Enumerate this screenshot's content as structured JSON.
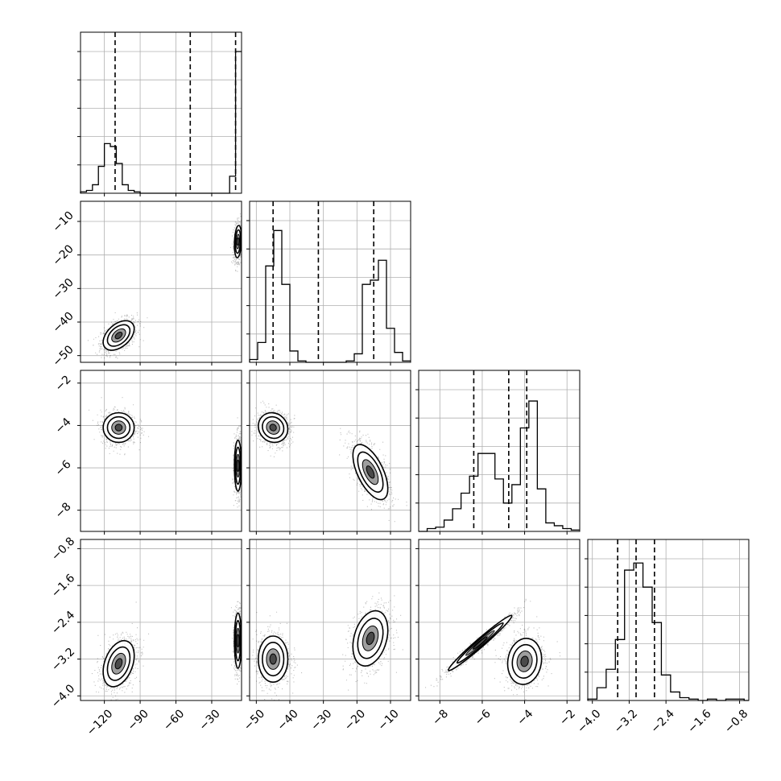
{
  "chart_data": {
    "type": "corner",
    "parameters": [
      {
        "index": 0,
        "range": [
          -140,
          -5
        ],
        "ticks": [
          -120,
          -90,
          -60,
          -30
        ],
        "tick_labels": [
          "−120",
          "−90",
          "−60",
          "−30"
        ]
      },
      {
        "index": 1,
        "range": [
          -52,
          -4
        ],
        "ticks": [
          -50,
          -40,
          -30,
          -20,
          -10
        ],
        "tick_labels": [
          "−50",
          "−40",
          "−30",
          "−20",
          "−10"
        ]
      },
      {
        "index": 2,
        "range": [
          -9,
          -1.4
        ],
        "ticks": [
          -8,
          -6,
          -4,
          -2
        ],
        "tick_labels": [
          "−8",
          "−6",
          "−4",
          "−2"
        ]
      },
      {
        "index": 3,
        "range": [
          -4.1,
          -0.6
        ],
        "ticks": [
          -4.0,
          -3.2,
          -2.4,
          -1.6,
          -0.8
        ],
        "tick_labels": [
          "−4.0",
          "−3.2",
          "−2.4",
          "−1.6",
          "−0.8"
        ]
      }
    ],
    "histograms": [
      {
        "param": 0,
        "edges": [
          -140,
          -135,
          -130,
          -125,
          -120,
          -115,
          -110,
          -105,
          -100,
          -95,
          -90,
          -85,
          -80,
          -75,
          -70,
          -65,
          -60,
          -55,
          -50,
          -45,
          -40,
          -35,
          -30,
          -25,
          -20,
          -15,
          -10,
          -5
        ],
        "counts": [
          0.01,
          0.02,
          0.06,
          0.19,
          0.35,
          0.33,
          0.21,
          0.06,
          0.02,
          0.01,
          0,
          0,
          0,
          0,
          0,
          0,
          0,
          0,
          0,
          0,
          0,
          0,
          0,
          0,
          0,
          0.12,
          1.0
        ],
        "quantiles": [
          -111,
          -48,
          -10
        ]
      },
      {
        "param": 1,
        "edges": [
          -52,
          -49.6,
          -47.2,
          -44.8,
          -42.4,
          -40,
          -37.6,
          -35.2,
          -32.8,
          -30.4,
          -28,
          -25.6,
          -23.2,
          -20.8,
          -18.4,
          -16,
          -13.6,
          -11.2,
          -8.8,
          -6.4,
          -4
        ],
        "counts": [
          0.02,
          0.14,
          0.68,
          0.93,
          0.55,
          0.08,
          0.01,
          0,
          0,
          0,
          0,
          0,
          0.01,
          0.06,
          0.55,
          0.58,
          0.72,
          0.24,
          0.07,
          0.01
        ],
        "quantiles": [
          -45,
          -31.5,
          -15
        ]
      },
      {
        "param": 2,
        "edges": [
          -9,
          -8.6,
          -8.2,
          -7.8,
          -7.4,
          -7.0,
          -6.6,
          -6.2,
          -5.8,
          -5.4,
          -5.0,
          -4.6,
          -4.2,
          -3.8,
          -3.4,
          -3.0,
          -2.6,
          -2.2,
          -1.8,
          -1.4
        ],
        "counts": [
          0.0,
          0.02,
          0.03,
          0.08,
          0.16,
          0.27,
          0.39,
          0.55,
          0.55,
          0.37,
          0.2,
          0.33,
          0.73,
          0.92,
          0.3,
          0.06,
          0.04,
          0.02,
          0.01
        ],
        "quantiles": [
          -6.4,
          -4.75,
          -3.9
        ]
      },
      {
        "param": 3,
        "edges": [
          -4.1,
          -3.9,
          -3.7,
          -3.5,
          -3.3,
          -3.1,
          -2.9,
          -2.7,
          -2.5,
          -2.3,
          -2.1,
          -1.9,
          -1.7,
          -1.5,
          -1.3,
          -1.1,
          -0.9,
          -0.7,
          -0.6
        ],
        "counts": [
          0.01,
          0.09,
          0.22,
          0.43,
          0.92,
          0.97,
          0.8,
          0.55,
          0.18,
          0.06,
          0.02,
          0.01,
          0.0,
          0.01,
          0.0,
          0.01,
          0.01,
          0.0
        ],
        "quantiles": [
          -3.45,
          -3.05,
          -2.65
        ]
      }
    ],
    "pairs": [
      {
        "row": 1,
        "col": 0,
        "modes": [
          {
            "mean": [
              -108,
              -44
            ],
            "sd": [
              6.5,
              2.2
            ],
            "rho": 0.45,
            "peak": 0.7
          },
          {
            "mean": [
              -8,
              -16
            ],
            "sd": [
              1.5,
              2.4
            ],
            "rho": 0.2,
            "peak": 1.0
          }
        ]
      },
      {
        "row": 2,
        "col": 0,
        "modes": [
          {
            "mean": [
              -108,
              -4.1
            ],
            "sd": [
              6.5,
              0.35
            ],
            "rho": 0.0,
            "peak": 0.7
          },
          {
            "mean": [
              -8,
              -5.9
            ],
            "sd": [
              1.5,
              0.6
            ],
            "rho": 0.0,
            "peak": 1.0
          }
        ]
      },
      {
        "row": 2,
        "col": 1,
        "modes": [
          {
            "mean": [
              -45,
              -4.1
            ],
            "sd": [
              2.2,
              0.35
            ],
            "rho": -0.1,
            "peak": 1.0
          },
          {
            "mean": [
              -16,
              -6.2
            ],
            "sd": [
              2.6,
              0.65
            ],
            "rho": -0.6,
            "peak": 0.8
          }
        ]
      },
      {
        "row": 3,
        "col": 0,
        "modes": [
          {
            "mean": [
              -108,
              -3.3
            ],
            "sd": [
              6.5,
              0.25
            ],
            "rho": 0.35,
            "peak": 0.7
          },
          {
            "mean": [
              -8,
              -2.8
            ],
            "sd": [
              1.5,
              0.3
            ],
            "rho": 0.0,
            "peak": 1.0
          }
        ]
      },
      {
        "row": 3,
        "col": 1,
        "modes": [
          {
            "mean": [
              -45,
              -3.2
            ],
            "sd": [
              2.2,
              0.25
            ],
            "rho": 0.0,
            "peak": 1.0
          },
          {
            "mean": [
              -16,
              -2.75
            ],
            "sd": [
              2.6,
              0.3
            ],
            "rho": 0.3,
            "peak": 0.8
          }
        ]
      },
      {
        "row": 3,
        "col": 2,
        "modes": [
          {
            "mean": [
              -6.1,
              -2.85
            ],
            "sd": [
              0.75,
              0.3
            ],
            "rho": 0.98,
            "peak": 1.0
          },
          {
            "mean": [
              -4.0,
              -3.25
            ],
            "sd": [
              0.4,
              0.25
            ],
            "rho": 0.1,
            "peak": 0.9
          }
        ]
      }
    ],
    "grid": true,
    "quantile_lines": "dashed"
  }
}
